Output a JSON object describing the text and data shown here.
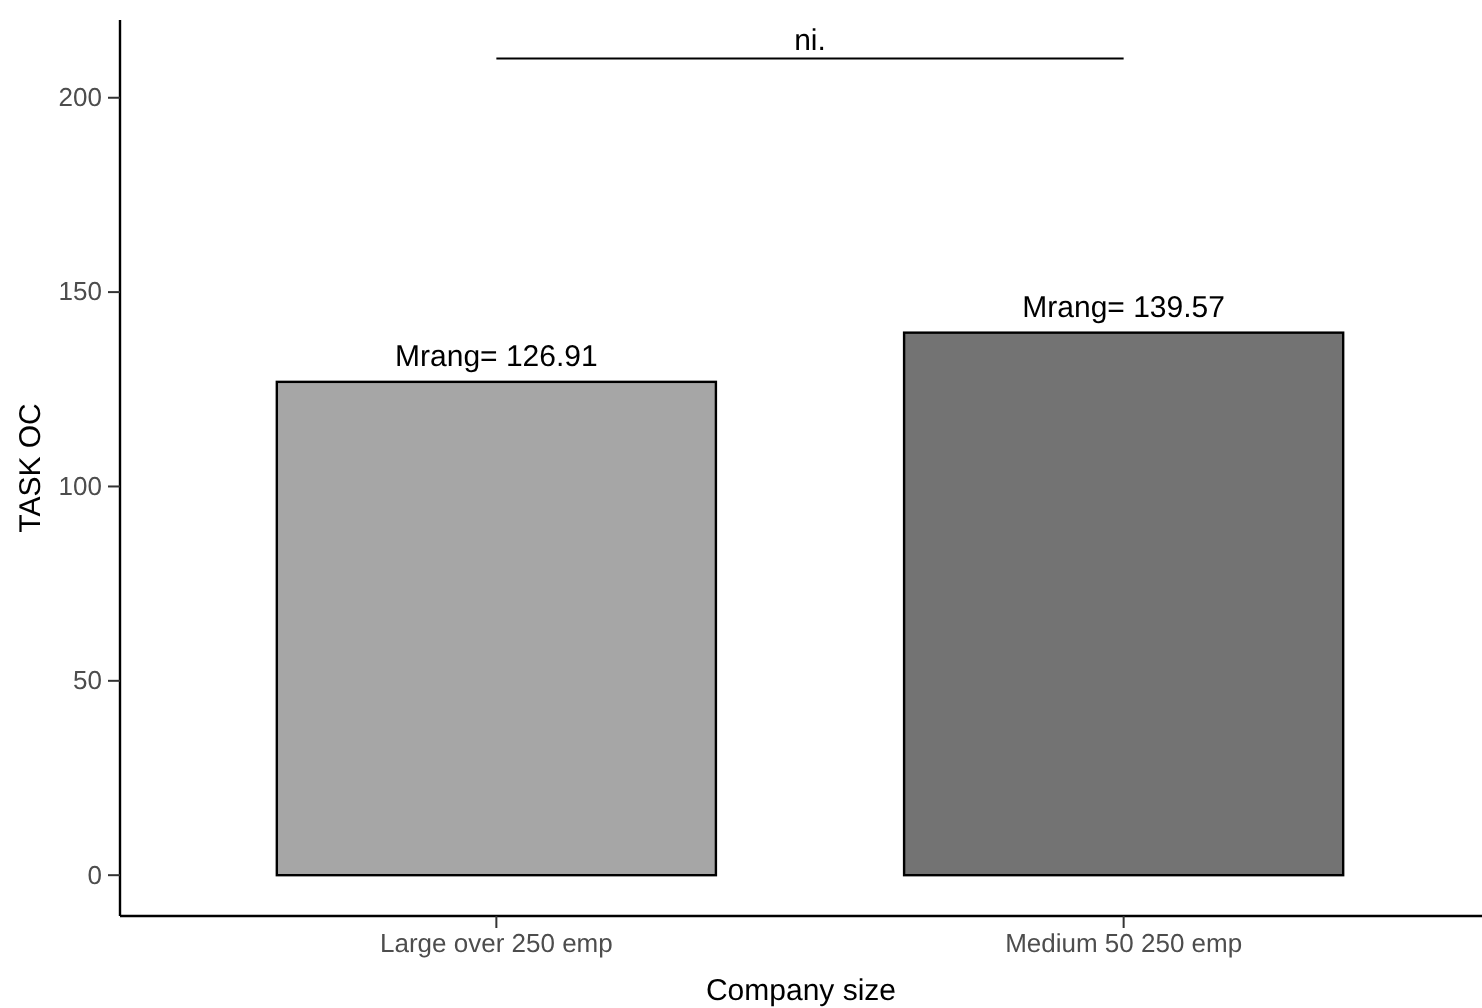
{
  "chart_data": {
    "type": "bar",
    "xlabel": "Company size",
    "ylabel": "TASK OC",
    "categories": [
      "Large over 250 emp",
      "Medium 50 250 emp"
    ],
    "values": [
      126.91,
      139.57
    ],
    "colors": [
      "#a6a6a6",
      "#737373"
    ],
    "value_labels": [
      "Mrang= 126.91",
      "Mrang= 139.57"
    ],
    "ylim": [
      -10.5,
      220
    ],
    "yticks": [
      0,
      50,
      100,
      150,
      200
    ],
    "grid": false,
    "annotations": [
      "ni."
    ]
  }
}
